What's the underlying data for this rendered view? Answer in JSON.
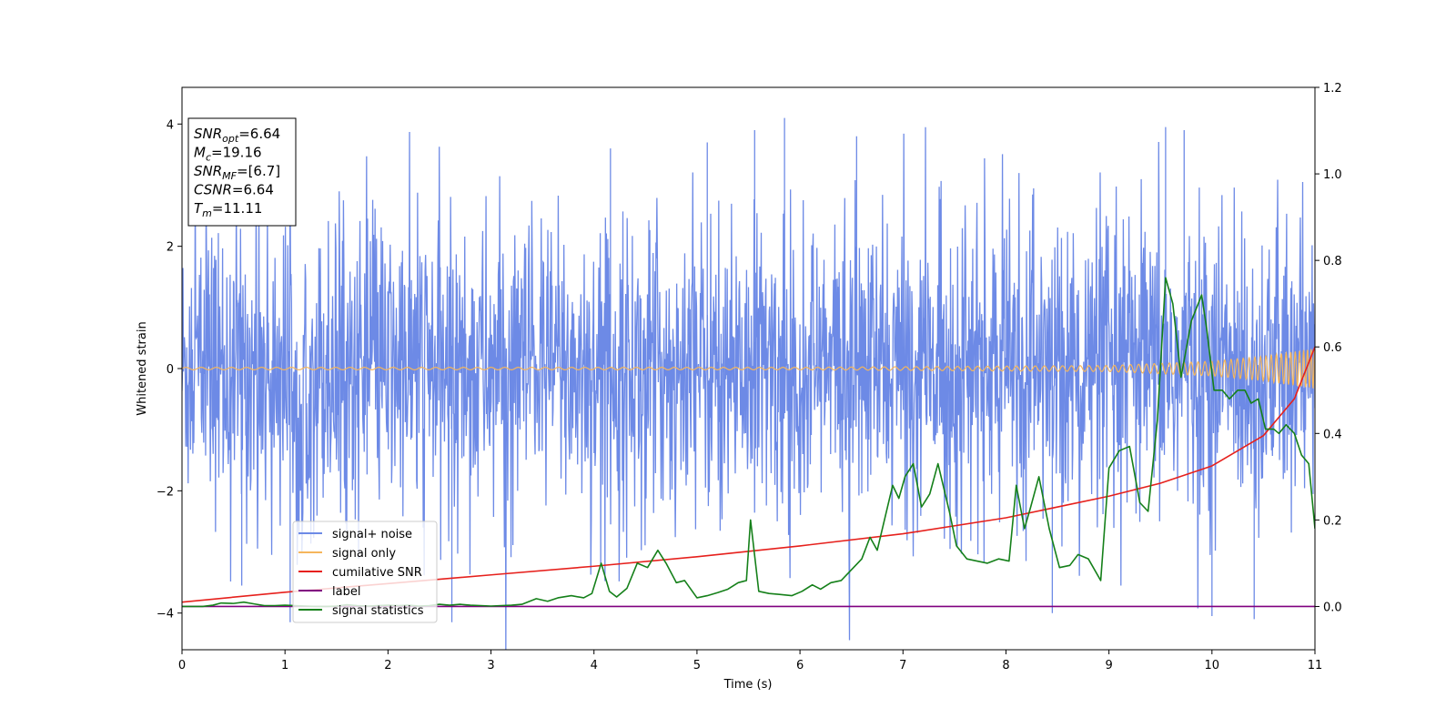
{
  "chart_data": {
    "type": "line",
    "xlabel": "Time (s)",
    "ylabel": "Whitened strain",
    "xlim": [
      0,
      11
    ],
    "ylim": [
      -4.6,
      4.6
    ],
    "y2lim": [
      -0.1,
      1.2
    ],
    "xticks": [
      "0",
      "1",
      "2",
      "3",
      "4",
      "5",
      "6",
      "7",
      "8",
      "9",
      "10",
      "11"
    ],
    "yticks": [
      "4",
      "2",
      "0",
      "−2",
      "−4"
    ],
    "y2ticks": [
      "1.2",
      "1.0",
      "0.8",
      "0.6",
      "0.4",
      "0.2",
      "0.0"
    ],
    "legend_position": "lower-left",
    "info_box": {
      "position": "upper-left",
      "lines": [
        {
          "sym": "SNR",
          "sub": "opt",
          "value": "=6.64"
        },
        {
          "sym": "M",
          "sub": "c",
          "value": "=19.16"
        },
        {
          "sym": "SNR",
          "sub": "MF",
          "value": "=[6.7]"
        },
        {
          "sym": "CSNR",
          "sub": "",
          "value": "=6.64"
        },
        {
          "sym": "T",
          "sub": "m",
          "value": "=11.11"
        }
      ]
    },
    "series": [
      {
        "name": "signal+ noise",
        "axis": "left",
        "color": "#6d8ae6",
        "style": "noise",
        "envelope": {
          "t": [
            0,
            11
          ],
          "low": [
            -2.6,
            -2.6
          ],
          "high": [
            2.6,
            2.6
          ]
        },
        "peaks": [
          {
            "x": 1.05,
            "y": -4.15
          },
          {
            "x": 2.62,
            "y": -4.15
          },
          {
            "x": 5.85,
            "y": 4.1
          },
          {
            "x": 5.56,
            "y": 3.9
          },
          {
            "x": 4.16,
            "y": 3.6
          },
          {
            "x": 6.55,
            "y": 3.8
          },
          {
            "x": 9.73,
            "y": 3.9
          },
          {
            "x": 10.0,
            "y": -4.05
          },
          {
            "x": 10.41,
            "y": -4.1
          },
          {
            "x": 8.45,
            "y": -4.0
          },
          {
            "x": 9.55,
            "y": 3.95
          },
          {
            "x": 0.58,
            "y": -3.55
          },
          {
            "x": 5.1,
            "y": 3.7
          }
        ]
      },
      {
        "name": "signal only",
        "axis": "left",
        "color": "#f5b65c",
        "style": "chirp",
        "amplitude": {
          "t": [
            0,
            6,
            9,
            10,
            10.5,
            11
          ],
          "a": [
            0.02,
            0.02,
            0.05,
            0.12,
            0.2,
            0.33
          ]
        }
      },
      {
        "name": "cumilative SNR",
        "axis": "right",
        "color": "#e6201c",
        "x": [
          0,
          1,
          2,
          3,
          4,
          5,
          6,
          7,
          8,
          9,
          9.5,
          10,
          10.5,
          10.8,
          11
        ],
        "y": [
          0.01,
          0.033,
          0.053,
          0.073,
          0.093,
          0.115,
          0.14,
          0.168,
          0.205,
          0.255,
          0.285,
          0.325,
          0.395,
          0.48,
          0.6
        ]
      },
      {
        "name": "label",
        "axis": "right",
        "color": "#800080",
        "x": [
          0,
          11
        ],
        "y": [
          0,
          0
        ]
      },
      {
        "name": "signal statistics",
        "axis": "right",
        "color": "#15801a",
        "x": [
          0,
          0.1,
          0.2,
          0.3,
          0.38,
          0.5,
          0.6,
          0.7,
          0.8,
          0.9,
          1.0,
          1.1,
          1.2,
          1.3,
          1.4,
          1.5,
          1.6,
          1.7,
          1.8,
          1.9,
          2.0,
          2.1,
          2.2,
          2.3,
          2.4,
          2.5,
          2.6,
          2.7,
          2.8,
          2.9,
          3.0,
          3.1,
          3.2,
          3.3,
          3.44,
          3.55,
          3.65,
          3.78,
          3.9,
          3.98,
          4.07,
          4.15,
          4.22,
          4.32,
          4.42,
          4.52,
          4.62,
          4.7,
          4.8,
          4.88,
          5.0,
          5.1,
          5.2,
          5.3,
          5.4,
          5.48,
          5.52,
          5.6,
          5.7,
          5.8,
          5.92,
          6.02,
          6.12,
          6.2,
          6.3,
          6.4,
          6.52,
          6.6,
          6.68,
          6.75,
          6.82,
          6.9,
          6.96,
          7.02,
          7.1,
          7.18,
          7.26,
          7.34,
          7.45,
          7.52,
          7.62,
          7.72,
          7.82,
          7.93,
          8.03,
          8.1,
          8.18,
          8.24,
          8.32,
          8.42,
          8.52,
          8.62,
          8.7,
          8.8,
          8.92,
          9.0,
          9.1,
          9.2,
          9.3,
          9.38,
          9.47,
          9.55,
          9.62,
          9.7,
          9.8,
          9.9,
          9.95,
          10.02,
          10.1,
          10.17,
          10.25,
          10.32,
          10.38,
          10.45,
          10.52,
          10.6,
          10.65,
          10.72,
          10.8,
          10.87,
          10.94,
          11.0
        ],
        "y": [
          0,
          0,
          0,
          0.003,
          0.008,
          0.007,
          0.01,
          0.006,
          0.002,
          0.002,
          0.003,
          0.002,
          0.001,
          0.0,
          0.0,
          0.001,
          0.004,
          0.002,
          0.001,
          0.002,
          0.003,
          0.002,
          0.003,
          0.001,
          0.002,
          0.005,
          0.003,
          0.005,
          0.003,
          0.002,
          0.001,
          0.002,
          0.003,
          0.005,
          0.018,
          0.012,
          0.02,
          0.025,
          0.02,
          0.03,
          0.1,
          0.035,
          0.022,
          0.042,
          0.1,
          0.09,
          0.13,
          0.1,
          0.055,
          0.06,
          0.02,
          0.025,
          0.032,
          0.04,
          0.055,
          0.06,
          0.2,
          0.035,
          0.03,
          0.028,
          0.025,
          0.035,
          0.05,
          0.04,
          0.055,
          0.06,
          0.09,
          0.11,
          0.16,
          0.13,
          0.2,
          0.28,
          0.25,
          0.3,
          0.33,
          0.23,
          0.26,
          0.33,
          0.22,
          0.14,
          0.11,
          0.105,
          0.1,
          0.11,
          0.105,
          0.28,
          0.18,
          0.23,
          0.3,
          0.18,
          0.09,
          0.095,
          0.12,
          0.11,
          0.06,
          0.32,
          0.36,
          0.37,
          0.24,
          0.22,
          0.43,
          0.76,
          0.7,
          0.53,
          0.66,
          0.72,
          0.64,
          0.5,
          0.5,
          0.48,
          0.5,
          0.5,
          0.47,
          0.48,
          0.41,
          0.41,
          0.4,
          0.42,
          0.4,
          0.35,
          0.33,
          0.18
        ]
      }
    ]
  }
}
